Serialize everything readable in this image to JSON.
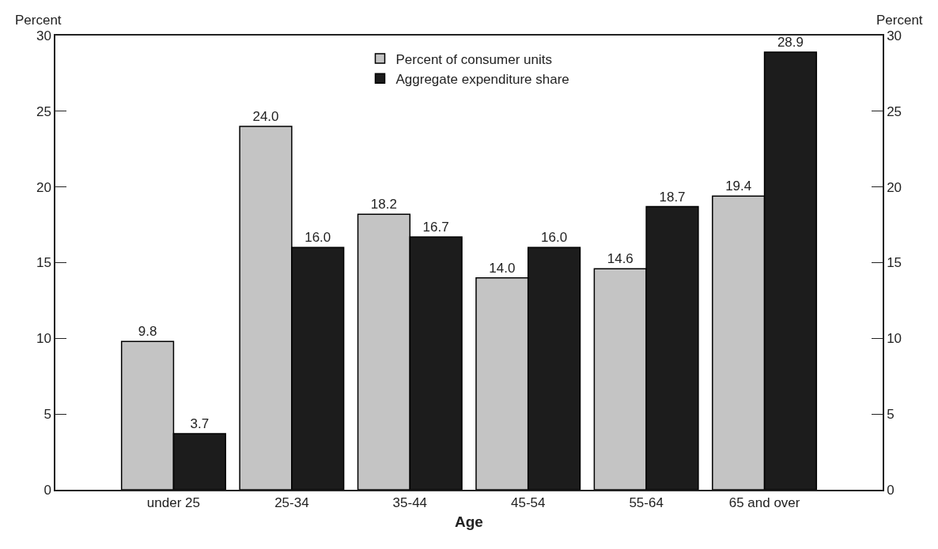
{
  "chart_data": {
    "type": "bar",
    "xlabel": "Age",
    "ylabel": "Percent",
    "y2label": "Percent",
    "categories": [
      "under 25",
      "25-34",
      "35-44",
      "45-54",
      "55-64",
      "65 and over"
    ],
    "series": [
      {
        "name": "Percent of consumer units",
        "color": "#c4c4c4",
        "values": [
          9.8,
          24.0,
          18.2,
          14.0,
          14.6,
          19.4
        ],
        "value_labels": [
          "9.8",
          "24.0",
          "18.2",
          "14.0",
          "14.6",
          "19.4"
        ]
      },
      {
        "name": "Aggregate expenditure share",
        "color": "#1c1c1c",
        "values": [
          3.7,
          16.0,
          16.7,
          16.0,
          18.7,
          28.9
        ],
        "value_labels": [
          "3.7",
          "16.0",
          "16.7",
          "16.0",
          "18.7",
          "28.9"
        ]
      }
    ],
    "ylim": [
      0,
      30
    ],
    "yticks": [
      0,
      5,
      10,
      15,
      20,
      25,
      30
    ],
    "y2lim": [
      0,
      30
    ],
    "y2ticks": [
      0,
      5,
      10,
      15,
      20,
      25,
      30
    ],
    "legend": "top"
  }
}
